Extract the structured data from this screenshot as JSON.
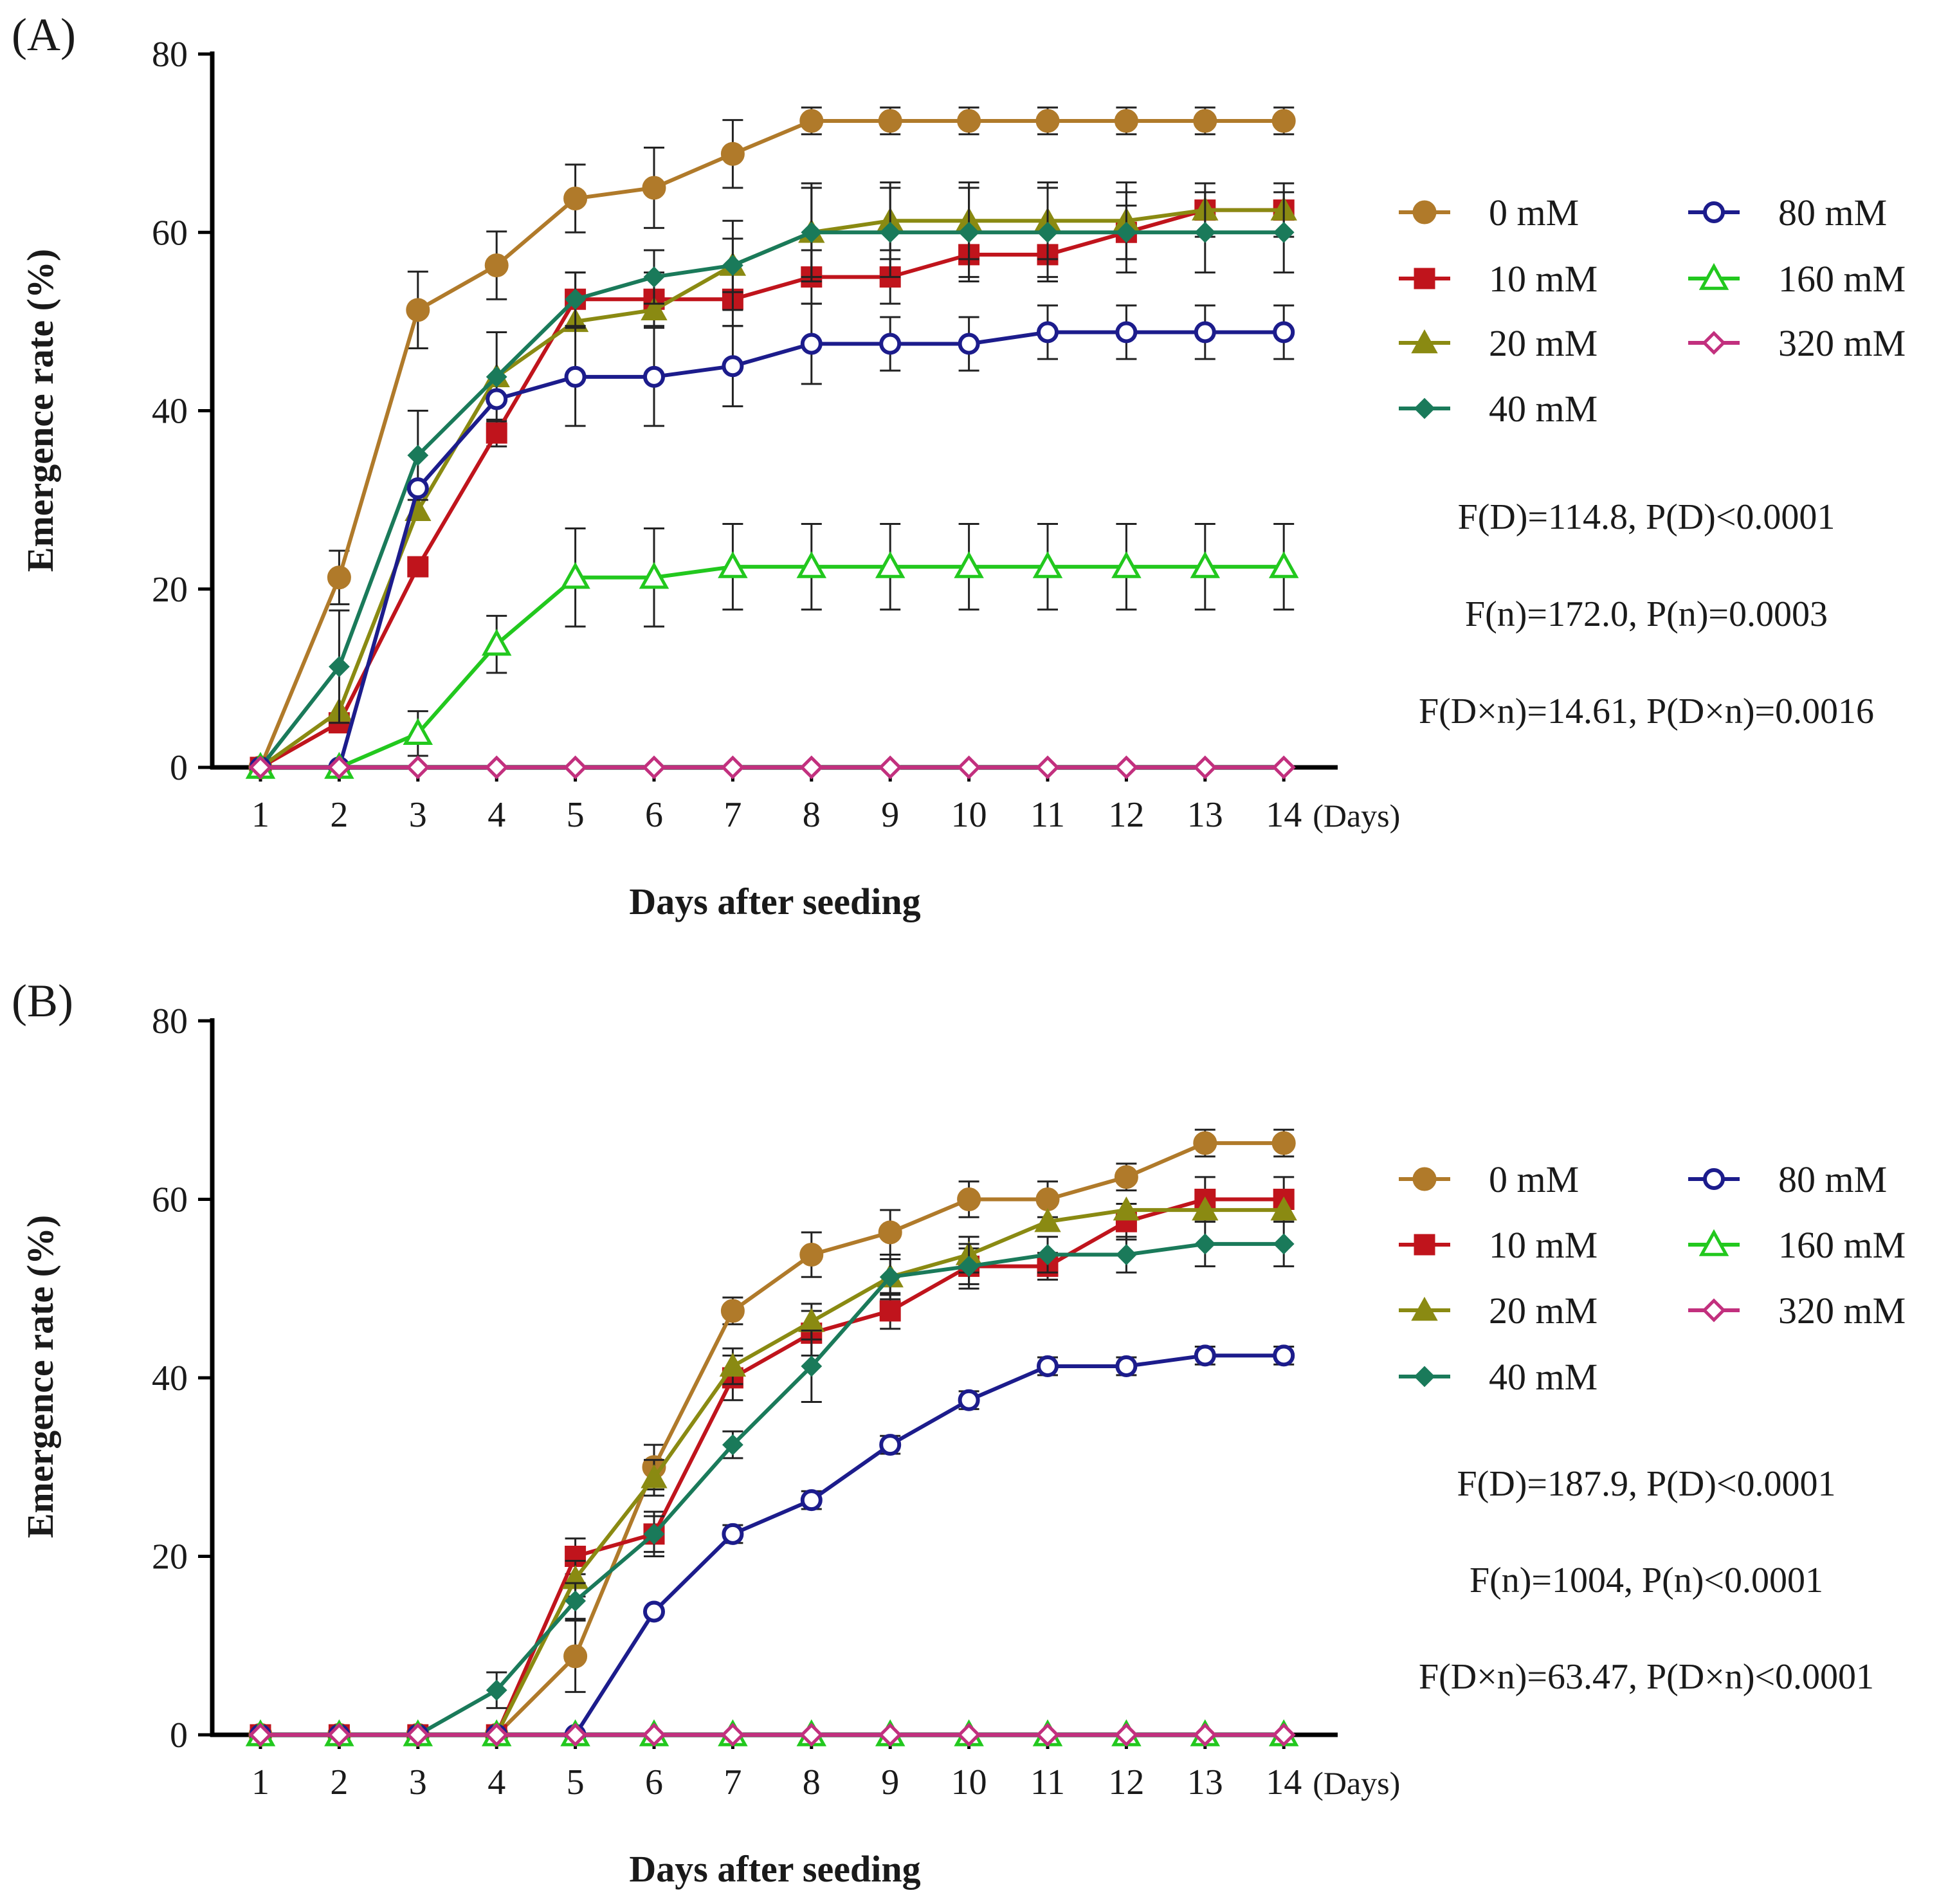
{
  "colors": {
    "0 mM": "#b07a2a",
    "10 mM": "#c0141c",
    "20 mM": "#8a8a12",
    "40 mM": "#1a7a5a",
    "80 mM": "#1c1c8c",
    "160 mM": "#22c81e",
    "320 mM": "#c2307e"
  },
  "chart_data": [
    {
      "type": "line",
      "panel_label": "(A)",
      "xlabel": "Days after seeding",
      "x_unit_label": "(Days)",
      "ylabel": "Emergence rate (%)",
      "ylim": [
        0,
        80
      ],
      "yticks": [
        0,
        20,
        40,
        60,
        80
      ],
      "x": [
        1,
        2,
        3,
        4,
        5,
        6,
        7,
        8,
        9,
        10,
        11,
        12,
        13,
        14
      ],
      "legend_position": "right",
      "series": [
        {
          "name": "0 mM",
          "marker": "circle-filled",
          "values": [
            0,
            21.3,
            51.3,
            56.3,
            63.8,
            65,
            68.8,
            72.5,
            72.5,
            72.5,
            72.5,
            72.5,
            72.5,
            72.5
          ],
          "errors": [
            0,
            3,
            4.3,
            3.8,
            3.8,
            4.5,
            3.8,
            1.5,
            1.5,
            1.5,
            1.5,
            1.5,
            1.5,
            1.5
          ]
        },
        {
          "name": "10 mM",
          "marker": "square-filled",
          "values": [
            0,
            5,
            22.5,
            37.5,
            52.5,
            52.5,
            52.5,
            55,
            55,
            57.5,
            57.5,
            60,
            62.5,
            62.5
          ],
          "errors": [
            0,
            0,
            0,
            1.5,
            3,
            3,
            3,
            3,
            3,
            3,
            3,
            3,
            3,
            3
          ]
        },
        {
          "name": "20 mM",
          "marker": "triangle-filled",
          "values": [
            0,
            6.3,
            28.8,
            43.8,
            50,
            51.3,
            56.3,
            60,
            61.3,
            61.3,
            61.3,
            61.3,
            62.5,
            62.5
          ],
          "errors": [
            0,
            0,
            0,
            0,
            0,
            0,
            5,
            5.5,
            4.3,
            4.3,
            4.3,
            4.3,
            0,
            0
          ]
        },
        {
          "name": "40 mM",
          "marker": "diamond-filled",
          "values": [
            0,
            11.3,
            35,
            43.8,
            52.5,
            55,
            56.3,
            60,
            60,
            60,
            60,
            60,
            60,
            60
          ],
          "errors": [
            0,
            6.3,
            5,
            5,
            3,
            3,
            3,
            5,
            5,
            5,
            5,
            4.5,
            4.5,
            4.5
          ]
        },
        {
          "name": "80 mM",
          "marker": "circle-open",
          "values": [
            0,
            0,
            31.3,
            41.3,
            43.8,
            43.8,
            45,
            47.5,
            47.5,
            47.5,
            48.8,
            48.8,
            48.8,
            48.8
          ],
          "errors": [
            0,
            0,
            0,
            0,
            5.5,
            5.5,
            4.5,
            4.5,
            3,
            3,
            3,
            3,
            3,
            3
          ]
        },
        {
          "name": "160 mM",
          "marker": "triangle-open",
          "values": [
            0,
            0,
            3.8,
            13.8,
            21.3,
            21.3,
            22.5,
            22.5,
            22.5,
            22.5,
            22.5,
            22.5,
            22.5,
            22.5
          ],
          "errors": [
            0,
            0,
            2.5,
            3.2,
            5.5,
            5.5,
            4.8,
            4.8,
            4.8,
            4.8,
            4.8,
            4.8,
            4.8,
            4.8
          ]
        },
        {
          "name": "320 mM",
          "marker": "diamond-open",
          "values": [
            0,
            0,
            0,
            0,
            0,
            0,
            0,
            0,
            0,
            0,
            0,
            0,
            0,
            0
          ],
          "errors": [
            0,
            0,
            0,
            0,
            0,
            0,
            0,
            0,
            0,
            0,
            0,
            0,
            0,
            0
          ]
        }
      ],
      "stats": [
        "F(D)=114.8, P(D)<0.0001",
        "F(n)=172.0, P(n)=0.0003",
        "F(D×n)=14.61, P(D×n)=0.0016"
      ]
    },
    {
      "type": "line",
      "panel_label": "(B)",
      "xlabel": "Days after seeding",
      "x_unit_label": "(Days)",
      "ylabel": "Emergence rate (%)",
      "ylim": [
        0,
        80
      ],
      "yticks": [
        0,
        20,
        40,
        60,
        80
      ],
      "x": [
        1,
        2,
        3,
        4,
        5,
        6,
        7,
        8,
        9,
        10,
        11,
        12,
        13,
        14
      ],
      "legend_position": "right",
      "series": [
        {
          "name": "0 mM",
          "marker": "circle-filled",
          "values": [
            0,
            0,
            0,
            0,
            8.8,
            30,
            47.5,
            53.8,
            56.3,
            60,
            60,
            62.5,
            66.3,
            66.3
          ],
          "errors": [
            0,
            0,
            0,
            0,
            4,
            2.5,
            1.5,
            2.5,
            2.5,
            2,
            2,
            1.5,
            1.5,
            1.5
          ]
        },
        {
          "name": "10 mM",
          "marker": "square-filled",
          "values": [
            0,
            0,
            0,
            0,
            20,
            22.5,
            40,
            45,
            47.5,
            52.5,
            52.5,
            57.5,
            60,
            60
          ],
          "errors": [
            0,
            0,
            0,
            0,
            2,
            2.5,
            2.5,
            2.5,
            2,
            2,
            1.5,
            2,
            2.5,
            2.5
          ]
        },
        {
          "name": "20 mM",
          "marker": "triangle-filled",
          "values": [
            0,
            0,
            0,
            0,
            17.5,
            28.8,
            41.3,
            46.3,
            51.3,
            53.8,
            57.5,
            58.8,
            58.8,
            58.8
          ],
          "errors": [
            0,
            0,
            0,
            0,
            2,
            2,
            2,
            2,
            2,
            2,
            0,
            0,
            0,
            0
          ]
        },
        {
          "name": "40 mM",
          "marker": "diamond-filled",
          "values": [
            0,
            0,
            0,
            5,
            15,
            22.5,
            32.5,
            41.3,
            51.3,
            52.5,
            53.8,
            53.8,
            55,
            55
          ],
          "errors": [
            0,
            0,
            0,
            2,
            2,
            2,
            1.5,
            4,
            2.5,
            2.5,
            2,
            2,
            2.5,
            2.5
          ]
        },
        {
          "name": "80 mM",
          "marker": "circle-open",
          "values": [
            0,
            0,
            0,
            0,
            0,
            13.8,
            22.5,
            26.3,
            32.5,
            37.5,
            41.3,
            41.3,
            42.5,
            42.5
          ],
          "errors": [
            0,
            0,
            0,
            0,
            0,
            0,
            1,
            1,
            1,
            1,
            1,
            1,
            1,
            1
          ]
        },
        {
          "name": "160 mM",
          "marker": "triangle-open",
          "values": [
            0,
            0,
            0,
            0,
            0,
            0,
            0,
            0,
            0,
            0,
            0,
            0,
            0,
            0
          ],
          "errors": [
            0,
            0,
            0,
            0,
            0,
            0,
            0,
            0,
            0,
            0,
            0,
            0,
            0,
            0
          ]
        },
        {
          "name": "320 mM",
          "marker": "diamond-open",
          "values": [
            0,
            0,
            0,
            0,
            0,
            0,
            0,
            0,
            0,
            0,
            0,
            0,
            0,
            0
          ],
          "errors": [
            0,
            0,
            0,
            0,
            0,
            0,
            0,
            0,
            0,
            0,
            0,
            0,
            0,
            0
          ]
        }
      ],
      "stats": [
        "F(D)=187.9, P(D)<0.0001",
        "F(n)=1004, P(n)<0.0001",
        "F(D×n)=63.47, P(D×n)<0.0001"
      ]
    }
  ]
}
